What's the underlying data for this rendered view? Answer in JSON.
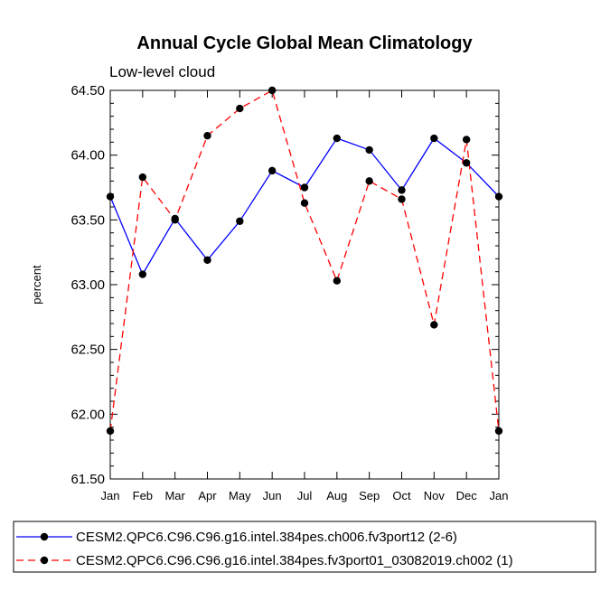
{
  "chart_data": {
    "type": "line",
    "title": "Annual Cycle Global Mean Climatology",
    "subtitle": "Low-level cloud",
    "xlabel": "",
    "ylabel": "percent",
    "categories": [
      "Jan",
      "Feb",
      "Mar",
      "Apr",
      "May",
      "Jun",
      "Jul",
      "Aug",
      "Sep",
      "Oct",
      "Nov",
      "Dec",
      "Jan"
    ],
    "ylim": [
      61.5,
      64.5
    ],
    "yticks": [
      "61.50",
      "62.00",
      "62.50",
      "63.00",
      "63.50",
      "64.00",
      "64.50"
    ],
    "grid": false,
    "legend_position": "bottom",
    "series": [
      {
        "name": "CESM2.QPC6.C96.C96.g16.intel.384pes.ch006.fv3port12 (2-6)",
        "color": "#0000ff",
        "line_style": "solid",
        "marker": "filled-circle",
        "marker_color": "#000000",
        "values": [
          63.68,
          63.08,
          63.51,
          63.19,
          63.49,
          63.88,
          63.75,
          64.13,
          64.04,
          63.73,
          64.13,
          63.94,
          63.68
        ]
      },
      {
        "name": "CESM2.QPC6.C96.C96.g16.intel.384pes.fv3port01_03082019.ch002 (1)",
        "color": "#ff0000",
        "line_style": "dashed",
        "marker": "filled-circle",
        "marker_color": "#000000",
        "values": [
          61.87,
          63.83,
          63.5,
          64.15,
          64.36,
          64.5,
          63.63,
          63.03,
          63.8,
          63.66,
          62.69,
          64.12,
          61.87
        ]
      }
    ]
  }
}
